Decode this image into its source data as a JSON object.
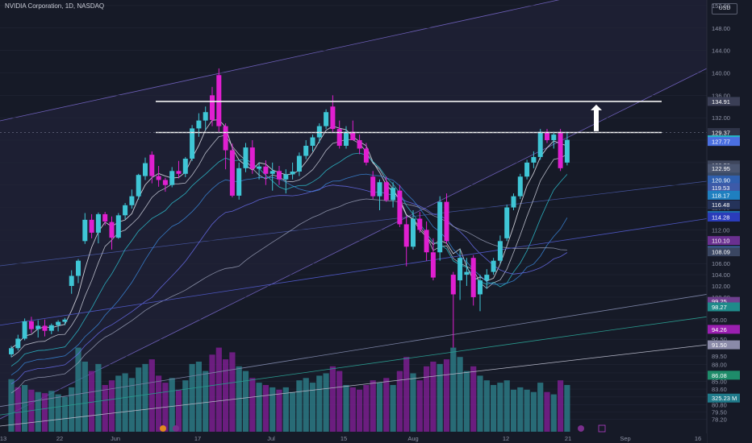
{
  "chart_data": {
    "type": "candlestick",
    "title": "NVIDIA Corporation, 1D, NASDAQ",
    "currency": "USD",
    "ylim": [
      76,
      153
    ],
    "y_ticks": [
      "152.00",
      "148.00",
      "144.00",
      "140.00",
      "136.00",
      "132.00",
      "128.00",
      "124.00",
      "120.00",
      "116.00",
      "112.00",
      "110.10",
      "106.00",
      "104.00",
      "102.00",
      "100.00",
      "96.00",
      "92.50",
      "89.50",
      "88.00",
      "86.50",
      "85.00",
      "83.60",
      "82.20",
      "80.80",
      "79.50",
      "78.20"
    ],
    "x_tick_labels": [
      "13",
      "22",
      "Jun",
      "17",
      "Jul",
      "15",
      "Aug",
      "12",
      "21",
      "Sep",
      "16"
    ],
    "price_tags": [
      {
        "label": "134.91",
        "value": 134.91,
        "color": "#3b3f56"
      },
      {
        "label": "129.37",
        "value": 129.37,
        "color": "#2f3448"
      },
      {
        "label": "128.06",
        "value": 128.06,
        "color": "#24b7c6"
      },
      {
        "label": "127.77",
        "value": 127.77,
        "color": "#4a6fe0"
      },
      {
        "label": "123.58",
        "value": 123.58,
        "color": "#3e465c"
      },
      {
        "label": "122.95",
        "value": 122.95,
        "color": "#4a5570"
      },
      {
        "label": "121.42",
        "value": 121.42,
        "color": "#3a4a66"
      },
      {
        "label": "120.90",
        "value": 120.9,
        "color": "#2f5fae"
      },
      {
        "label": "119.53",
        "value": 119.53,
        "color": "#3d5aa8"
      },
      {
        "label": "118.17",
        "value": 118.17,
        "color": "#1f7fc0"
      },
      {
        "label": "116.48",
        "value": 116.48,
        "color": "#25335a"
      },
      {
        "label": "114.58",
        "value": 114.58,
        "color": "#1e6aa8"
      },
      {
        "label": "114.28",
        "value": 114.28,
        "color": "#2a3cba"
      },
      {
        "label": "110.10",
        "value": 110.1,
        "color": "#6a3090"
      },
      {
        "label": "108.31",
        "value": 108.31,
        "color": "#3c68a8"
      },
      {
        "label": "108.09",
        "value": 108.09,
        "color": "#3a4662"
      },
      {
        "label": "99.25",
        "value": 99.25,
        "color": "#6e3f8e"
      },
      {
        "label": "98.27",
        "value": 98.27,
        "color": "#1f8a8a"
      },
      {
        "label": "94.26",
        "value": 94.26,
        "color": "#9a1fb0"
      },
      {
        "label": "91.50",
        "value": 91.5,
        "color": "#8a8aa8"
      },
      {
        "label": "86.08",
        "value": 86.08,
        "color": "#1e8c6a"
      },
      {
        "label": "325.23 M",
        "value": 82.0,
        "color": "#1f7a8a"
      }
    ],
    "horizontal_levels": [
      134.91,
      129.37
    ],
    "candles": [
      {
        "o": 89.8,
        "h": 91.3,
        "l": 89.3,
        "c": 90.9
      },
      {
        "o": 90.9,
        "h": 93.3,
        "l": 90.5,
        "c": 92.6
      },
      {
        "o": 92.6,
        "h": 96.2,
        "l": 92.3,
        "c": 95.7
      },
      {
        "o": 95.7,
        "h": 96.5,
        "l": 93.6,
        "c": 94.3
      },
      {
        "o": 94.3,
        "h": 95.9,
        "l": 92.8,
        "c": 94.9
      },
      {
        "o": 94.9,
        "h": 96.0,
        "l": 93.0,
        "c": 94.0
      },
      {
        "o": 94.0,
        "h": 95.3,
        "l": 93.4,
        "c": 95.0
      },
      {
        "o": 95.0,
        "h": 95.9,
        "l": 93.9,
        "c": 95.6
      },
      {
        "o": 95.6,
        "h": 96.3,
        "l": 95.0,
        "c": 96.0
      },
      {
        "o": 102.0,
        "h": 104.8,
        "l": 100.6,
        "c": 103.8
      },
      {
        "o": 103.8,
        "h": 106.8,
        "l": 102.5,
        "c": 106.5
      },
      {
        "o": 110.0,
        "h": 115.0,
        "l": 109.5,
        "c": 113.8
      },
      {
        "o": 113.8,
        "h": 114.8,
        "l": 110.5,
        "c": 111.5
      },
      {
        "o": 111.5,
        "h": 115.1,
        "l": 109.6,
        "c": 114.8
      },
      {
        "o": 114.8,
        "h": 115.2,
        "l": 112.8,
        "c": 113.5
      },
      {
        "o": 113.4,
        "h": 114.4,
        "l": 108.5,
        "c": 110.6
      },
      {
        "o": 110.6,
        "h": 115.0,
        "l": 110.4,
        "c": 114.6
      },
      {
        "o": 114.6,
        "h": 116.8,
        "l": 113.9,
        "c": 116.4
      },
      {
        "o": 116.4,
        "h": 119.2,
        "l": 115.8,
        "c": 118.0
      },
      {
        "o": 118.0,
        "h": 122.0,
        "l": 117.4,
        "c": 121.8
      },
      {
        "o": 121.6,
        "h": 124.9,
        "l": 120.9,
        "c": 123.9
      },
      {
        "o": 125.4,
        "h": 126.0,
        "l": 120.3,
        "c": 121.6
      },
      {
        "o": 121.6,
        "h": 123.4,
        "l": 119.7,
        "c": 120.9
      },
      {
        "o": 120.9,
        "h": 121.3,
        "l": 118.8,
        "c": 120.0
      },
      {
        "o": 120.0,
        "h": 123.2,
        "l": 119.6,
        "c": 122.5
      },
      {
        "o": 122.5,
        "h": 124.3,
        "l": 121.2,
        "c": 122.0
      },
      {
        "o": 122.0,
        "h": 125.0,
        "l": 121.4,
        "c": 124.7
      },
      {
        "o": 124.7,
        "h": 130.7,
        "l": 124.3,
        "c": 130.1
      },
      {
        "o": 130.1,
        "h": 132.8,
        "l": 128.6,
        "c": 131.5
      },
      {
        "o": 131.5,
        "h": 134.0,
        "l": 129.8,
        "c": 133.0
      },
      {
        "o": 136.0,
        "h": 137.5,
        "l": 130.5,
        "c": 131.6
      },
      {
        "o": 139.6,
        "h": 140.8,
        "l": 129.5,
        "c": 130.5
      },
      {
        "o": 130.5,
        "h": 131.0,
        "l": 122.8,
        "c": 126.2
      },
      {
        "o": 126.2,
        "h": 127.4,
        "l": 117.8,
        "c": 118.1
      },
      {
        "o": 118.1,
        "h": 124.0,
        "l": 117.4,
        "c": 123.0
      },
      {
        "o": 123.0,
        "h": 127.5,
        "l": 122.3,
        "c": 126.7
      },
      {
        "o": 126.7,
        "h": 128.0,
        "l": 122.0,
        "c": 122.9
      },
      {
        "o": 122.9,
        "h": 124.0,
        "l": 121.0,
        "c": 123.3
      },
      {
        "o": 123.3,
        "h": 124.4,
        "l": 120.0,
        "c": 122.0
      },
      {
        "o": 122.0,
        "h": 124.0,
        "l": 119.0,
        "c": 122.5
      },
      {
        "o": 122.5,
        "h": 123.4,
        "l": 120.0,
        "c": 121.0
      },
      {
        "o": 121.0,
        "h": 122.8,
        "l": 118.5,
        "c": 121.9
      },
      {
        "o": 121.9,
        "h": 124.0,
        "l": 121.0,
        "c": 122.4
      },
      {
        "o": 122.4,
        "h": 125.8,
        "l": 121.6,
        "c": 125.2
      },
      {
        "o": 125.2,
        "h": 128.0,
        "l": 124.6,
        "c": 127.0
      },
      {
        "o": 127.0,
        "h": 129.0,
        "l": 126.0,
        "c": 128.5
      },
      {
        "o": 128.5,
        "h": 131.0,
        "l": 127.5,
        "c": 130.5
      },
      {
        "o": 130.5,
        "h": 133.5,
        "l": 130.0,
        "c": 133.0
      },
      {
        "o": 134.0,
        "h": 136.0,
        "l": 129.5,
        "c": 130.0
      },
      {
        "o": 130.0,
        "h": 131.5,
        "l": 126.5,
        "c": 127.0
      },
      {
        "o": 127.0,
        "h": 130.5,
        "l": 126.5,
        "c": 129.5
      },
      {
        "o": 129.5,
        "h": 131.5,
        "l": 128.0,
        "c": 128.0
      },
      {
        "o": 128.0,
        "h": 129.0,
        "l": 125.5,
        "c": 126.5
      },
      {
        "o": 126.5,
        "h": 127.5,
        "l": 123.5,
        "c": 124.0
      },
      {
        "o": 121.5,
        "h": 122.5,
        "l": 117.5,
        "c": 118.0
      },
      {
        "o": 118.0,
        "h": 121.0,
        "l": 115.5,
        "c": 120.5
      },
      {
        "o": 120.5,
        "h": 121.5,
        "l": 117.0,
        "c": 117.3
      },
      {
        "o": 117.3,
        "h": 120.5,
        "l": 116.0,
        "c": 119.5
      },
      {
        "o": 119.0,
        "h": 120.0,
        "l": 112.5,
        "c": 113.0
      },
      {
        "o": 113.0,
        "h": 114.5,
        "l": 105.5,
        "c": 109.0
      },
      {
        "o": 109.0,
        "h": 115.5,
        "l": 108.5,
        "c": 114.0
      },
      {
        "o": 114.0,
        "h": 115.2,
        "l": 111.5,
        "c": 112.0
      },
      {
        "o": 112.0,
        "h": 113.5,
        "l": 106.5,
        "c": 108.0
      },
      {
        "o": 108.0,
        "h": 110.5,
        "l": 103.0,
        "c": 103.5
      },
      {
        "o": 108.0,
        "h": 118.0,
        "l": 106.5,
        "c": 117.0
      },
      {
        "o": 117.0,
        "h": 118.5,
        "l": 109.5,
        "c": 110.0
      },
      {
        "o": 104.0,
        "h": 104.5,
        "l": 91.0,
        "c": 100.5
      },
      {
        "o": 103.0,
        "h": 108.5,
        "l": 99.5,
        "c": 107.0
      },
      {
        "o": 104.0,
        "h": 107.0,
        "l": 102.0,
        "c": 104.5
      },
      {
        "o": 107.0,
        "h": 107.5,
        "l": 98.5,
        "c": 100.0
      },
      {
        "o": 100.5,
        "h": 104.0,
        "l": 97.5,
        "c": 103.0
      },
      {
        "o": 103.0,
        "h": 105.0,
        "l": 101.5,
        "c": 104.0
      },
      {
        "o": 104.5,
        "h": 107.0,
        "l": 104.0,
        "c": 106.5
      },
      {
        "o": 106.5,
        "h": 111.0,
        "l": 106.0,
        "c": 110.0
      },
      {
        "o": 110.5,
        "h": 116.5,
        "l": 110.0,
        "c": 116.0
      },
      {
        "o": 116.0,
        "h": 118.5,
        "l": 115.5,
        "c": 118.0
      },
      {
        "o": 118.0,
        "h": 122.0,
        "l": 117.5,
        "c": 121.5
      },
      {
        "o": 121.5,
        "h": 124.5,
        "l": 121.0,
        "c": 124.0
      },
      {
        "o": 124.0,
        "h": 126.0,
        "l": 123.0,
        "c": 125.0
      },
      {
        "o": 125.0,
        "h": 130.0,
        "l": 124.5,
        "c": 129.5
      },
      {
        "o": 129.5,
        "h": 130.0,
        "l": 127.5,
        "c": 128.0
      },
      {
        "o": 128.0,
        "h": 129.5,
        "l": 126.5,
        "c": 129.0
      },
      {
        "o": 129.5,
        "h": 130.0,
        "l": 122.5,
        "c": 123.0
      },
      {
        "o": 124.0,
        "h": 129.5,
        "l": 123.5,
        "c": 128.06
      }
    ],
    "volume": [
      {
        "v": 0.45,
        "up": true
      },
      {
        "v": 0.38,
        "up": false
      },
      {
        "v": 0.4,
        "up": true
      },
      {
        "v": 0.36,
        "up": false
      },
      {
        "v": 0.34,
        "up": true
      },
      {
        "v": 0.33,
        "up": false
      },
      {
        "v": 0.35,
        "up": true
      },
      {
        "v": 0.32,
        "up": true
      },
      {
        "v": 0.3,
        "up": true
      },
      {
        "v": 0.38,
        "up": true
      },
      {
        "v": 0.72,
        "up": true
      },
      {
        "v": 0.6,
        "up": true
      },
      {
        "v": 0.52,
        "up": false
      },
      {
        "v": 0.58,
        "up": true
      },
      {
        "v": 0.4,
        "up": false
      },
      {
        "v": 0.44,
        "up": false
      },
      {
        "v": 0.48,
        "up": true
      },
      {
        "v": 0.5,
        "up": true
      },
      {
        "v": 0.46,
        "up": true
      },
      {
        "v": 0.55,
        "up": true
      },
      {
        "v": 0.58,
        "up": true
      },
      {
        "v": 0.62,
        "up": false
      },
      {
        "v": 0.48,
        "up": false
      },
      {
        "v": 0.42,
        "up": false
      },
      {
        "v": 0.46,
        "up": true
      },
      {
        "v": 0.36,
        "up": false
      },
      {
        "v": 0.44,
        "up": true
      },
      {
        "v": 0.58,
        "up": true
      },
      {
        "v": 0.6,
        "up": true
      },
      {
        "v": 0.52,
        "up": true
      },
      {
        "v": 0.66,
        "up": false
      },
      {
        "v": 0.72,
        "up": false
      },
      {
        "v": 0.62,
        "up": false
      },
      {
        "v": 0.68,
        "up": false
      },
      {
        "v": 0.56,
        "up": true
      },
      {
        "v": 0.52,
        "up": true
      },
      {
        "v": 0.46,
        "up": false
      },
      {
        "v": 0.42,
        "up": true
      },
      {
        "v": 0.4,
        "up": false
      },
      {
        "v": 0.38,
        "up": true
      },
      {
        "v": 0.36,
        "up": false
      },
      {
        "v": 0.38,
        "up": true
      },
      {
        "v": 0.34,
        "up": true
      },
      {
        "v": 0.44,
        "up": true
      },
      {
        "v": 0.46,
        "up": true
      },
      {
        "v": 0.42,
        "up": true
      },
      {
        "v": 0.48,
        "up": true
      },
      {
        "v": 0.5,
        "up": true
      },
      {
        "v": 0.56,
        "up": false
      },
      {
        "v": 0.52,
        "up": false
      },
      {
        "v": 0.4,
        "up": true
      },
      {
        "v": 0.38,
        "up": false
      },
      {
        "v": 0.36,
        "up": false
      },
      {
        "v": 0.4,
        "up": false
      },
      {
        "v": 0.44,
        "up": false
      },
      {
        "v": 0.42,
        "up": true
      },
      {
        "v": 0.46,
        "up": false
      },
      {
        "v": 0.4,
        "up": true
      },
      {
        "v": 0.52,
        "up": false
      },
      {
        "v": 0.64,
        "up": false
      },
      {
        "v": 0.5,
        "up": true
      },
      {
        "v": 0.44,
        "up": false
      },
      {
        "v": 0.56,
        "up": false
      },
      {
        "v": 0.6,
        "up": false
      },
      {
        "v": 0.58,
        "up": true
      },
      {
        "v": 0.62,
        "up": false
      },
      {
        "v": 0.72,
        "up": true
      },
      {
        "v": 0.64,
        "up": true
      },
      {
        "v": 0.52,
        "up": true
      },
      {
        "v": 0.56,
        "up": false
      },
      {
        "v": 0.48,
        "up": true
      },
      {
        "v": 0.44,
        "up": true
      },
      {
        "v": 0.4,
        "up": true
      },
      {
        "v": 0.42,
        "up": true
      },
      {
        "v": 0.44,
        "up": true
      },
      {
        "v": 0.36,
        "up": true
      },
      {
        "v": 0.38,
        "up": true
      },
      {
        "v": 0.36,
        "up": true
      },
      {
        "v": 0.34,
        "up": true
      },
      {
        "v": 0.42,
        "up": true
      },
      {
        "v": 0.34,
        "up": false
      },
      {
        "v": 0.32,
        "up": true
      },
      {
        "v": 0.44,
        "up": false
      },
      {
        "v": 0.4,
        "up": true
      }
    ],
    "moving_averages": [
      {
        "color": "#e8e8f0",
        "width": 0.9,
        "lag": 3
      },
      {
        "color": "#d0d4e0",
        "width": 0.8,
        "lag": 5
      },
      {
        "color": "#2ec4d4",
        "width": 0.8,
        "lag": 8
      },
      {
        "color": "#3b8be0",
        "width": 0.8,
        "lag": 13
      },
      {
        "color": "#6a6ff0",
        "width": 0.8,
        "lag": 21
      },
      {
        "color": "#9aa0b8",
        "width": 0.8,
        "lag": 34
      }
    ]
  }
}
